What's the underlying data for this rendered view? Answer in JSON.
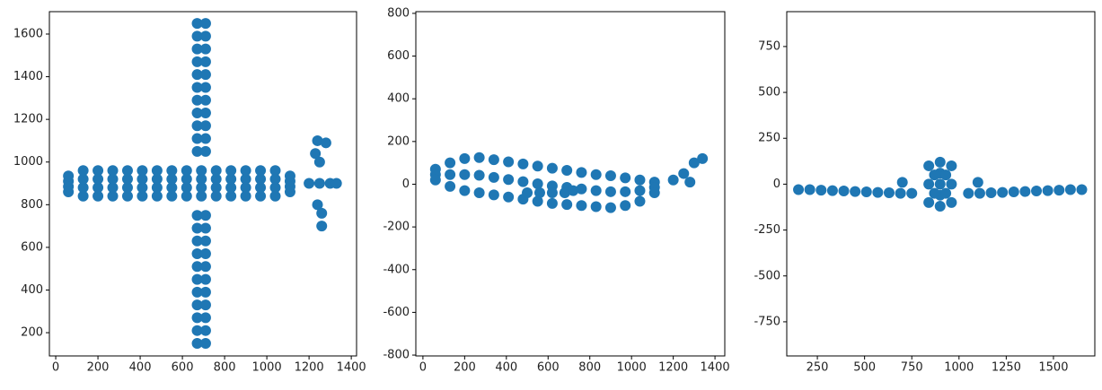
{
  "chart_data": [
    {
      "type": "scatter",
      "xlim": [
        -30,
        1425
      ],
      "ylim": [
        91,
        1705
      ],
      "xticks": [
        0,
        200,
        400,
        600,
        800,
        1000,
        1200,
        1400
      ],
      "yticks": [
        200,
        400,
        600,
        800,
        1000,
        1200,
        1400,
        1600
      ],
      "series": [
        {
          "color": "#1f77b4",
          "x": [
            60,
            60,
            60,
            60,
            130,
            130,
            130,
            130,
            200,
            200,
            200,
            200,
            270,
            270,
            270,
            270,
            340,
            340,
            340,
            340,
            410,
            410,
            410,
            410,
            480,
            480,
            480,
            480,
            550,
            550,
            550,
            550,
            620,
            620,
            620,
            620,
            690,
            690,
            690,
            690,
            760,
            760,
            760,
            760,
            830,
            830,
            830,
            830,
            900,
            900,
            900,
            900,
            970,
            970,
            970,
            970,
            1040,
            1040,
            1040,
            1040,
            1110,
            1110,
            1110,
            1110,
            670,
            710,
            670,
            710,
            670,
            710,
            670,
            710,
            670,
            710,
            670,
            710,
            670,
            710,
            670,
            710,
            670,
            710,
            670,
            710,
            670,
            710,
            670,
            710,
            670,
            710,
            670,
            710,
            670,
            710,
            670,
            710,
            670,
            710,
            670,
            710,
            670,
            710,
            670,
            710,
            670,
            710,
            670,
            710,
            1200,
            1250,
            1300,
            1330,
            1240,
            1280,
            1230,
            1250,
            1240,
            1260,
            1260
          ],
          "y": [
            860,
            885,
            910,
            935,
            840,
            880,
            920,
            960,
            840,
            880,
            920,
            960,
            840,
            880,
            920,
            960,
            840,
            880,
            920,
            960,
            840,
            880,
            920,
            960,
            840,
            880,
            920,
            960,
            840,
            880,
            920,
            960,
            840,
            880,
            920,
            960,
            840,
            880,
            920,
            960,
            840,
            880,
            920,
            960,
            840,
            880,
            920,
            960,
            840,
            880,
            920,
            960,
            840,
            880,
            920,
            960,
            840,
            880,
            920,
            960,
            860,
            885,
            910,
            935,
            150,
            150,
            210,
            210,
            270,
            270,
            330,
            330,
            390,
            390,
            450,
            450,
            510,
            510,
            570,
            570,
            630,
            630,
            690,
            690,
            750,
            750,
            1050,
            1050,
            1110,
            1110,
            1170,
            1170,
            1230,
            1230,
            1290,
            1290,
            1350,
            1350,
            1410,
            1410,
            1470,
            1470,
            1530,
            1530,
            1590,
            1590,
            1650,
            1650,
            900,
            900,
            900,
            900,
            1100,
            1090,
            1040,
            1000,
            800,
            760,
            700
          ]
        }
      ]
    },
    {
      "type": "scatter",
      "xlim": [
        -34,
        1447
      ],
      "ylim": [
        -804,
        808
      ],
      "xticks": [
        0,
        200,
        400,
        600,
        800,
        1000,
        1200,
        1400
      ],
      "yticks": [
        -800,
        -600,
        -400,
        -200,
        0,
        200,
        400,
        600,
        800
      ],
      "series": [
        {
          "color": "#1f77b4",
          "x": [
            60,
            60,
            60,
            130,
            130,
            130,
            200,
            200,
            200,
            270,
            270,
            270,
            340,
            340,
            340,
            410,
            410,
            410,
            480,
            480,
            480,
            550,
            550,
            550,
            620,
            620,
            620,
            690,
            690,
            690,
            760,
            760,
            760,
            830,
            830,
            830,
            900,
            900,
            900,
            970,
            970,
            970,
            1040,
            1040,
            1040,
            1110,
            1110,
            1110,
            500,
            560,
            620,
            680,
            720,
            1200,
            1250,
            1300,
            1340,
            1280
          ],
          "y": [
            70,
            45,
            20,
            100,
            45,
            -10,
            120,
            45,
            -30,
            125,
            42,
            -40,
            115,
            32,
            -50,
            105,
            22,
            -60,
            95,
            12,
            -70,
            85,
            2,
            -80,
            75,
            -8,
            -90,
            65,
            -15,
            -95,
            55,
            -22,
            -100,
            45,
            -30,
            -105,
            40,
            -35,
            -110,
            30,
            -35,
            -100,
            20,
            -30,
            -80,
            10,
            -15,
            -40,
            -40,
            -40,
            -40,
            -40,
            -30,
            20,
            50,
            100,
            120,
            10
          ]
        }
      ]
    },
    {
      "type": "scatter",
      "xlim": [
        88,
        1719
      ],
      "ylim": [
        -936,
        940
      ],
      "xticks": [
        250,
        500,
        750,
        1000,
        1250,
        1500
      ],
      "yticks": [
        -750,
        -500,
        -250,
        0,
        250,
        500,
        750
      ],
      "series": [
        {
          "color": "#1f77b4",
          "x": [
            150,
            210,
            270,
            330,
            390,
            450,
            510,
            570,
            630,
            690,
            750,
            1050,
            1110,
            1170,
            1230,
            1290,
            1350,
            1410,
            1470,
            1530,
            1590,
            1650,
            840,
            840,
            840,
            900,
            900,
            900,
            900,
            900,
            960,
            960,
            960,
            870,
            870,
            930,
            930,
            700,
            1100
          ],
          "y": [
            -30,
            -30,
            -33,
            -35,
            -37,
            -40,
            -42,
            -45,
            -47,
            -50,
            -50,
            -50,
            -50,
            -47,
            -45,
            -42,
            -40,
            -37,
            -35,
            -33,
            -30,
            -30,
            -100,
            0,
            100,
            -120,
            -60,
            0,
            60,
            120,
            -100,
            0,
            100,
            -50,
            50,
            -50,
            50,
            10,
            10
          ]
        }
      ]
    }
  ]
}
